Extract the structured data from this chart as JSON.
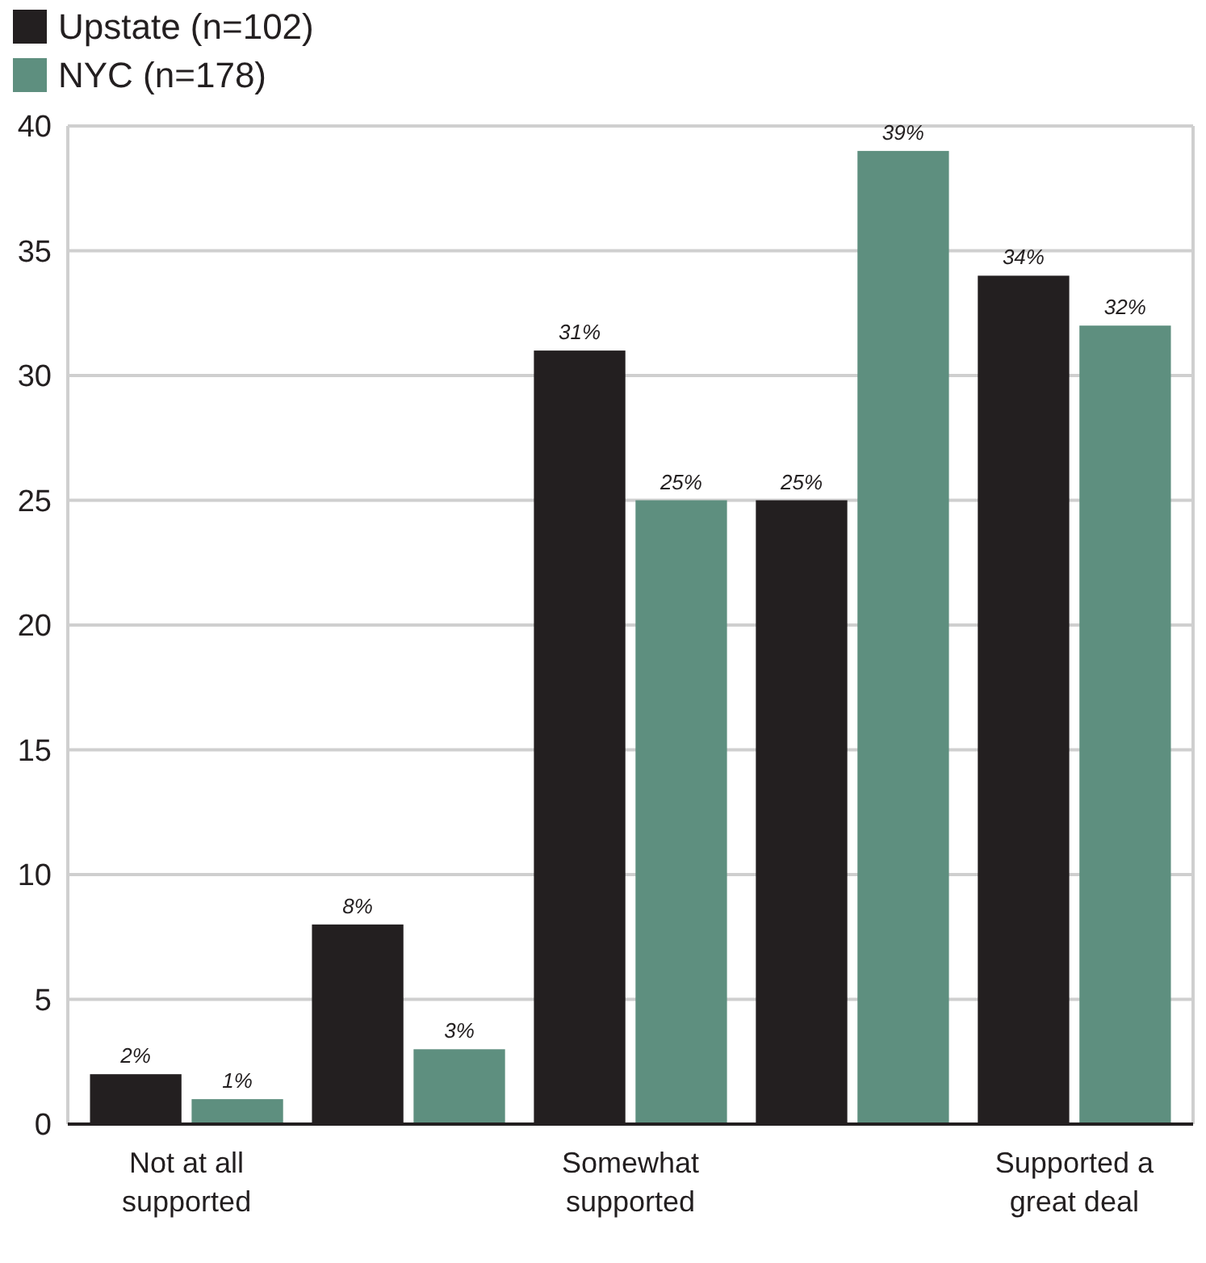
{
  "chart_data": {
    "type": "bar",
    "categories": [
      "Not at all supported",
      null,
      "Somewhat supported",
      null,
      "Supported a great deal"
    ],
    "series": [
      {
        "name": "Upstate (n=102)",
        "color": "#231f20",
        "values": [
          2,
          8,
          31,
          25,
          34
        ],
        "value_labels": [
          "2%",
          "8%",
          "31%",
          "25%",
          "34%"
        ]
      },
      {
        "name": "NYC (n=178)",
        "color": "#5e8f7f",
        "values": [
          1,
          3,
          25,
          39,
          32
        ],
        "value_labels": [
          "1%",
          "3%",
          "25%",
          "39%",
          "32%"
        ]
      }
    ],
    "ylim": [
      0,
      40
    ],
    "yticks": [
      0,
      5,
      10,
      15,
      20,
      25,
      30,
      35,
      40
    ],
    "grid": "y",
    "legend": "top left"
  }
}
